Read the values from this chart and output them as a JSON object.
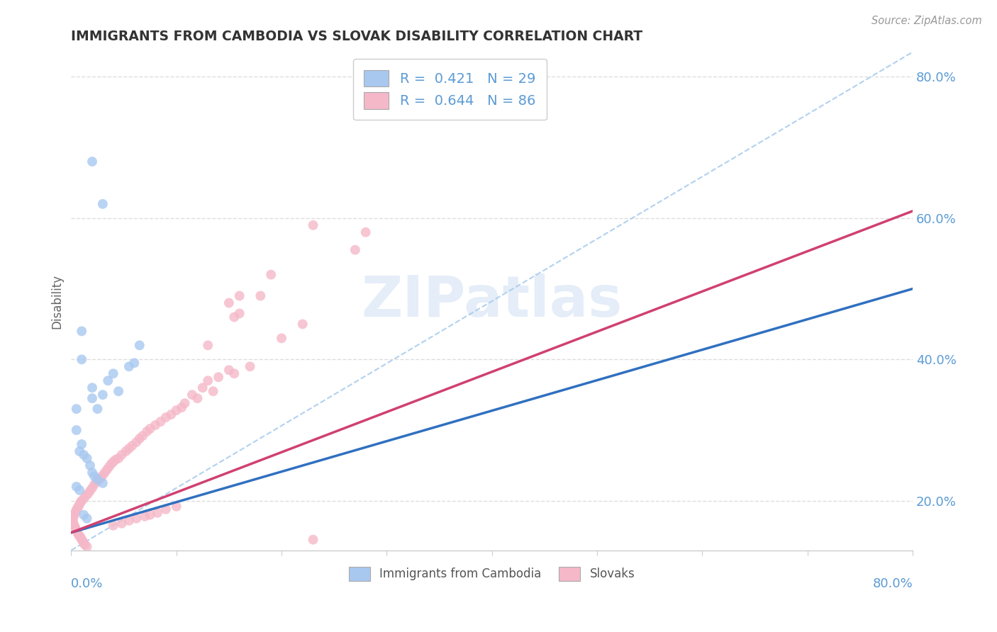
{
  "title": "IMMIGRANTS FROM CAMBODIA VS SLOVAK DISABILITY CORRELATION CHART",
  "source": "Source: ZipAtlas.com",
  "ylabel": "Disability",
  "xlim": [
    0,
    0.8
  ],
  "ylim": [
    0.13,
    0.835
  ],
  "yticks": [
    0.2,
    0.4,
    0.6,
    0.8
  ],
  "ytick_labels": [
    "20.0%",
    "40.0%",
    "60.0%",
    "80.0%"
  ],
  "watermark_text": "ZIPatlas",
  "legend_line1": "R =  0.421   N = 29",
  "legend_line2": "R =  0.644   N = 86",
  "blue_scatter_color": "#A8C8F0",
  "pink_scatter_color": "#F5B8C8",
  "blue_line_color": "#3070C0",
  "pink_line_color": "#D04070",
  "ref_line_color": "#AACCEE",
  "axis_label_color": "#5B9BD5",
  "title_color": "#333333",
  "background_color": "#FFFFFF",
  "grid_color": "#DDDDDD",
  "blue_line_x0": 0.0,
  "blue_line_y0": 0.155,
  "blue_line_x1": 0.8,
  "blue_line_y1": 0.5,
  "pink_line_x0": 0.0,
  "pink_line_y0": 0.155,
  "pink_line_x1": 0.8,
  "pink_line_y1": 0.61,
  "ref_line_x0": 0.0,
  "ref_line_y0": 0.13,
  "ref_line_x1": 0.8,
  "ref_line_y1": 0.835,
  "cambodia_points": [
    [
      0.02,
      0.68
    ],
    [
      0.03,
      0.62
    ],
    [
      0.01,
      0.44
    ],
    [
      0.01,
      0.4
    ],
    [
      0.005,
      0.33
    ],
    [
      0.02,
      0.36
    ],
    [
      0.03,
      0.35
    ],
    [
      0.035,
      0.37
    ],
    [
      0.04,
      0.38
    ],
    [
      0.045,
      0.355
    ],
    [
      0.055,
      0.39
    ],
    [
      0.06,
      0.395
    ],
    [
      0.065,
      0.42
    ],
    [
      0.02,
      0.345
    ],
    [
      0.025,
      0.33
    ],
    [
      0.005,
      0.3
    ],
    [
      0.008,
      0.27
    ],
    [
      0.01,
      0.28
    ],
    [
      0.012,
      0.265
    ],
    [
      0.015,
      0.26
    ],
    [
      0.018,
      0.25
    ],
    [
      0.02,
      0.24
    ],
    [
      0.022,
      0.235
    ],
    [
      0.025,
      0.23
    ],
    [
      0.03,
      0.225
    ],
    [
      0.005,
      0.22
    ],
    [
      0.008,
      0.215
    ],
    [
      0.012,
      0.18
    ],
    [
      0.015,
      0.175
    ]
  ],
  "slovak_points": [
    [
      0.23,
      0.59
    ],
    [
      0.27,
      0.555
    ],
    [
      0.19,
      0.52
    ],
    [
      0.18,
      0.49
    ],
    [
      0.16,
      0.49
    ],
    [
      0.15,
      0.48
    ],
    [
      0.16,
      0.465
    ],
    [
      0.155,
      0.46
    ],
    [
      0.22,
      0.45
    ],
    [
      0.2,
      0.43
    ],
    [
      0.13,
      0.42
    ],
    [
      0.17,
      0.39
    ],
    [
      0.15,
      0.385
    ],
    [
      0.155,
      0.38
    ],
    [
      0.14,
      0.375
    ],
    [
      0.13,
      0.37
    ],
    [
      0.125,
      0.36
    ],
    [
      0.135,
      0.355
    ],
    [
      0.115,
      0.35
    ],
    [
      0.12,
      0.345
    ],
    [
      0.108,
      0.338
    ],
    [
      0.105,
      0.332
    ],
    [
      0.1,
      0.328
    ],
    [
      0.095,
      0.322
    ],
    [
      0.09,
      0.318
    ],
    [
      0.085,
      0.312
    ],
    [
      0.08,
      0.307
    ],
    [
      0.075,
      0.302
    ],
    [
      0.072,
      0.298
    ],
    [
      0.068,
      0.292
    ],
    [
      0.065,
      0.288
    ],
    [
      0.062,
      0.283
    ],
    [
      0.058,
      0.278
    ],
    [
      0.055,
      0.274
    ],
    [
      0.052,
      0.27
    ],
    [
      0.048,
      0.265
    ],
    [
      0.045,
      0.26
    ],
    [
      0.042,
      0.258
    ],
    [
      0.04,
      0.255
    ],
    [
      0.038,
      0.252
    ],
    [
      0.036,
      0.248
    ],
    [
      0.034,
      0.244
    ],
    [
      0.032,
      0.24
    ],
    [
      0.03,
      0.236
    ],
    [
      0.028,
      0.232
    ],
    [
      0.026,
      0.23
    ],
    [
      0.024,
      0.227
    ],
    [
      0.022,
      0.223
    ],
    [
      0.02,
      0.218
    ],
    [
      0.018,
      0.214
    ],
    [
      0.016,
      0.21
    ],
    [
      0.014,
      0.207
    ],
    [
      0.012,
      0.203
    ],
    [
      0.01,
      0.2
    ],
    [
      0.009,
      0.198
    ],
    [
      0.008,
      0.195
    ],
    [
      0.007,
      0.192
    ],
    [
      0.006,
      0.19
    ],
    [
      0.005,
      0.187
    ],
    [
      0.004,
      0.184
    ],
    [
      0.003,
      0.18
    ],
    [
      0.002,
      0.176
    ],
    [
      0.002,
      0.17
    ],
    [
      0.003,
      0.165
    ],
    [
      0.004,
      0.162
    ],
    [
      0.005,
      0.158
    ],
    [
      0.006,
      0.155
    ],
    [
      0.007,
      0.152
    ],
    [
      0.008,
      0.15
    ],
    [
      0.009,
      0.148
    ],
    [
      0.01,
      0.145
    ],
    [
      0.011,
      0.143
    ],
    [
      0.012,
      0.14
    ],
    [
      0.013,
      0.138
    ],
    [
      0.015,
      0.135
    ],
    [
      0.04,
      0.165
    ],
    [
      0.048,
      0.168
    ],
    [
      0.055,
      0.172
    ],
    [
      0.062,
      0.175
    ],
    [
      0.07,
      0.178
    ],
    [
      0.075,
      0.18
    ],
    [
      0.082,
      0.183
    ],
    [
      0.09,
      0.188
    ],
    [
      0.1,
      0.192
    ],
    [
      0.23,
      0.145
    ],
    [
      0.28,
      0.58
    ]
  ]
}
